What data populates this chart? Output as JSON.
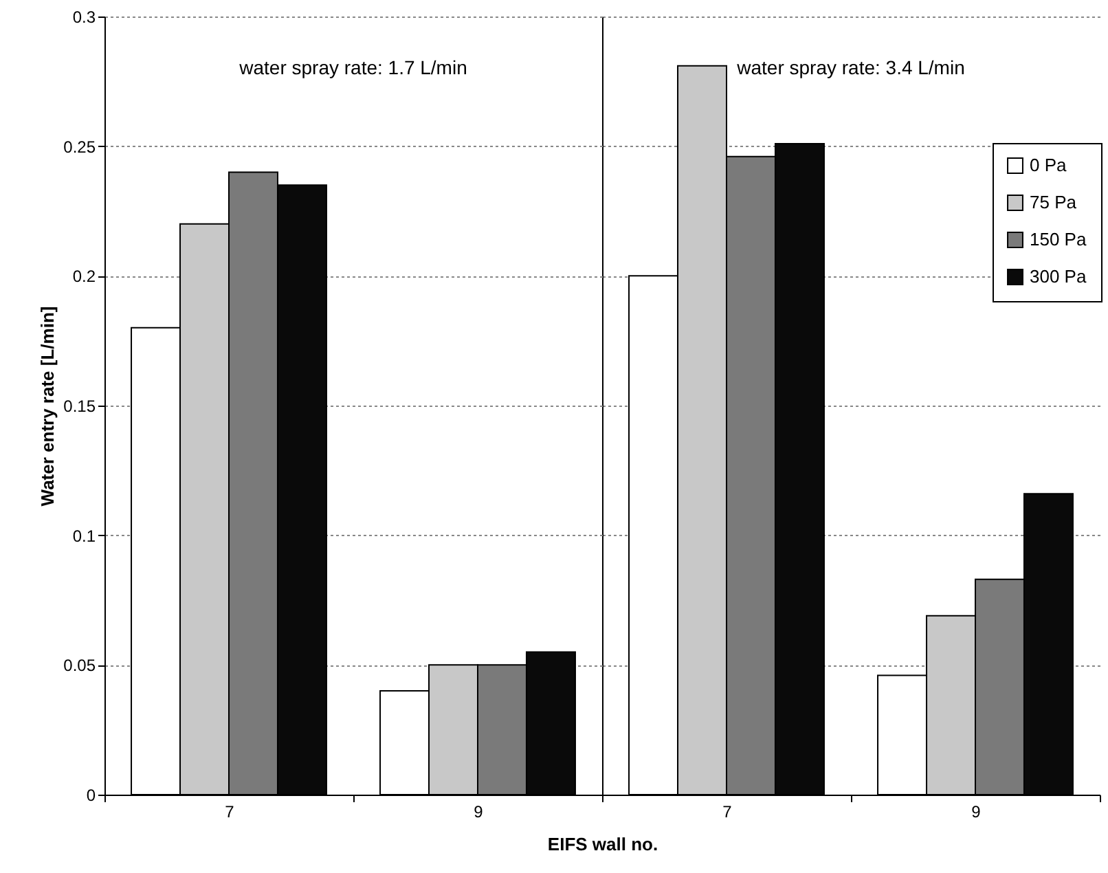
{
  "chart_data": [
    {
      "type": "bar",
      "annotations": [
        "water spray rate: 1.7 L/min"
      ],
      "xlabel": "EIFS wall no.",
      "ylabel": "Water entry rate [L/min]",
      "categories": [
        "7",
        "9"
      ],
      "series": [
        {
          "color": "#ffffff",
          "values": [
            0.18,
            0.04
          ]
        },
        {
          "color": "#c8c8c8",
          "values": [
            0.22,
            0.05
          ]
        },
        {
          "color": "#7a7a7a",
          "values": [
            0.24,
            0.05
          ]
        },
        {
          "color": "#0a0a0a",
          "values": [
            0.235,
            0.055
          ]
        }
      ],
      "ylim": [
        0,
        0.3
      ],
      "yticks": [
        0,
        0.05,
        0.1,
        0.15,
        0.2,
        0.25,
        0.3
      ],
      "grid": "y",
      "legend": false
    },
    {
      "type": "bar",
      "annotations": [
        "water spray rate: 3.4 L/min"
      ],
      "categories": [
        "7",
        "9"
      ],
      "series": [
        {
          "name": "0 Pa",
          "color": "#ffffff",
          "values": [
            0.2,
            0.046
          ]
        },
        {
          "name": "75 Pa",
          "color": "#c8c8c8",
          "values": [
            0.281,
            0.069
          ]
        },
        {
          "name": "150 Pa",
          "color": "#7a7a7a",
          "values": [
            0.246,
            0.083
          ]
        },
        {
          "name": "300 Pa",
          "color": "#0a0a0a",
          "values": [
            0.251,
            0.116
          ]
        }
      ],
      "ylim": [
        0,
        0.3
      ],
      "yticks": [
        0,
        0.05,
        0.1,
        0.15,
        0.2,
        0.25,
        0.3
      ],
      "grid": "y",
      "legend": "top right",
      "tick_labels": "x"
    }
  ]
}
